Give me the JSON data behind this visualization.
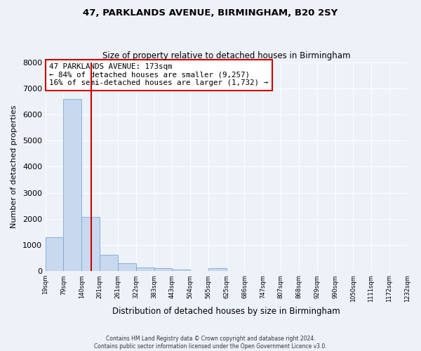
{
  "title": "47, PARKLANDS AVENUE, BIRMINGHAM, B20 2SY",
  "subtitle": "Size of property relative to detached houses in Birmingham",
  "xlabel": "Distribution of detached houses by size in Birmingham",
  "ylabel": "Number of detached properties",
  "bin_edges": [
    19,
    79,
    140,
    201,
    261,
    322,
    383,
    443,
    504,
    565,
    625,
    686,
    747,
    807,
    868,
    929,
    990,
    1050,
    1111,
    1172,
    1232
  ],
  "bin_labels": [
    "19sqm",
    "79sqm",
    "140sqm",
    "201sqm",
    "261sqm",
    "322sqm",
    "383sqm",
    "443sqm",
    "504sqm",
    "565sqm",
    "625sqm",
    "686sqm",
    "747sqm",
    "807sqm",
    "868sqm",
    "929sqm",
    "990sqm",
    "1050sqm",
    "1111sqm",
    "1172sqm",
    "1232sqm"
  ],
  "bar_heights": [
    1300,
    6600,
    2080,
    620,
    290,
    140,
    100,
    60,
    0,
    100,
    0,
    0,
    0,
    0,
    0,
    0,
    0,
    0,
    0,
    0
  ],
  "bar_color": "#c8d8ef",
  "bar_edge_color": "#7ca8d4",
  "property_line_x": 173,
  "property_line_color": "#cc0000",
  "annotation_line1": "47 PARKLANDS AVENUE: 173sqm",
  "annotation_line2": "← 84% of detached houses are smaller (9,257)",
  "annotation_line3": "16% of semi-detached houses are larger (1,732) →",
  "annotation_box_color": "white",
  "annotation_box_edgecolor": "#cc0000",
  "ylim": [
    0,
    8000
  ],
  "yticks": [
    0,
    1000,
    2000,
    3000,
    4000,
    5000,
    6000,
    7000,
    8000
  ],
  "footer_line1": "Contains HM Land Registry data © Crown copyright and database right 2024.",
  "footer_line2": "Contains public sector information licensed under the Open Government Licence v3.0.",
  "background_color": "#edf1f8",
  "grid_color": "#ffffff"
}
